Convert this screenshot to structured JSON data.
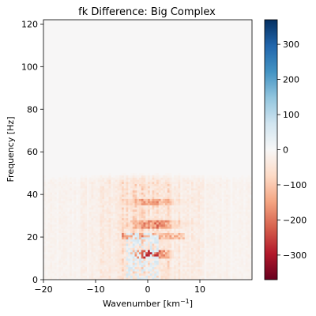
{
  "chart_data": {
    "type": "heatmap",
    "title": "fk Difference: Big Complex",
    "xlabel": "Wavenumber [km",
    "xlabel_sup": "−1",
    "xlabel_end": "]",
    "ylabel": "Frequency [Hz]",
    "xlim": [
      -20,
      20
    ],
    "ylim": [
      0,
      122
    ],
    "xticks": [
      -20,
      -10,
      0,
      10
    ],
    "xtick_labels": [
      "−20",
      "−10",
      "0",
      "10"
    ],
    "yticks": [
      0,
      20,
      40,
      60,
      80,
      100,
      120
    ],
    "ytick_labels": [
      "0",
      "20",
      "40",
      "60",
      "80",
      "100",
      "120"
    ],
    "colormap": "RdBu",
    "clim": [
      -370,
      370
    ],
    "colorbar_ticks": [
      -300,
      -200,
      -100,
      0,
      100,
      200,
      300
    ],
    "colorbar_tick_labels": [
      "−300",
      "−200",
      "−100",
      "0",
      "100",
      "200",
      "300"
    ],
    "grid": false,
    "features": [
      {
        "region": "broadband noise",
        "x_range": [
          -20,
          20
        ],
        "y_range": [
          0,
          48
        ],
        "typical_value": -40
      },
      {
        "region": "strong negative band",
        "x_range": [
          -3,
          5
        ],
        "y_range": [
          10,
          14
        ],
        "typical_value": -300
      },
      {
        "region": "negative band",
        "x_range": [
          -6,
          8
        ],
        "y_range": [
          24,
          28
        ],
        "typical_value": -180
      },
      {
        "region": "negative band",
        "x_range": [
          -6,
          8
        ],
        "y_range": [
          35,
          38
        ],
        "typical_value": -150
      },
      {
        "region": "positive patch",
        "x_range": [
          -4,
          2
        ],
        "y_range": [
          0,
          22
        ],
        "typical_value": 40
      },
      {
        "region": "near zero",
        "x_range": [
          -20,
          20
        ],
        "y_range": [
          48,
          122
        ],
        "typical_value": 0
      }
    ]
  }
}
